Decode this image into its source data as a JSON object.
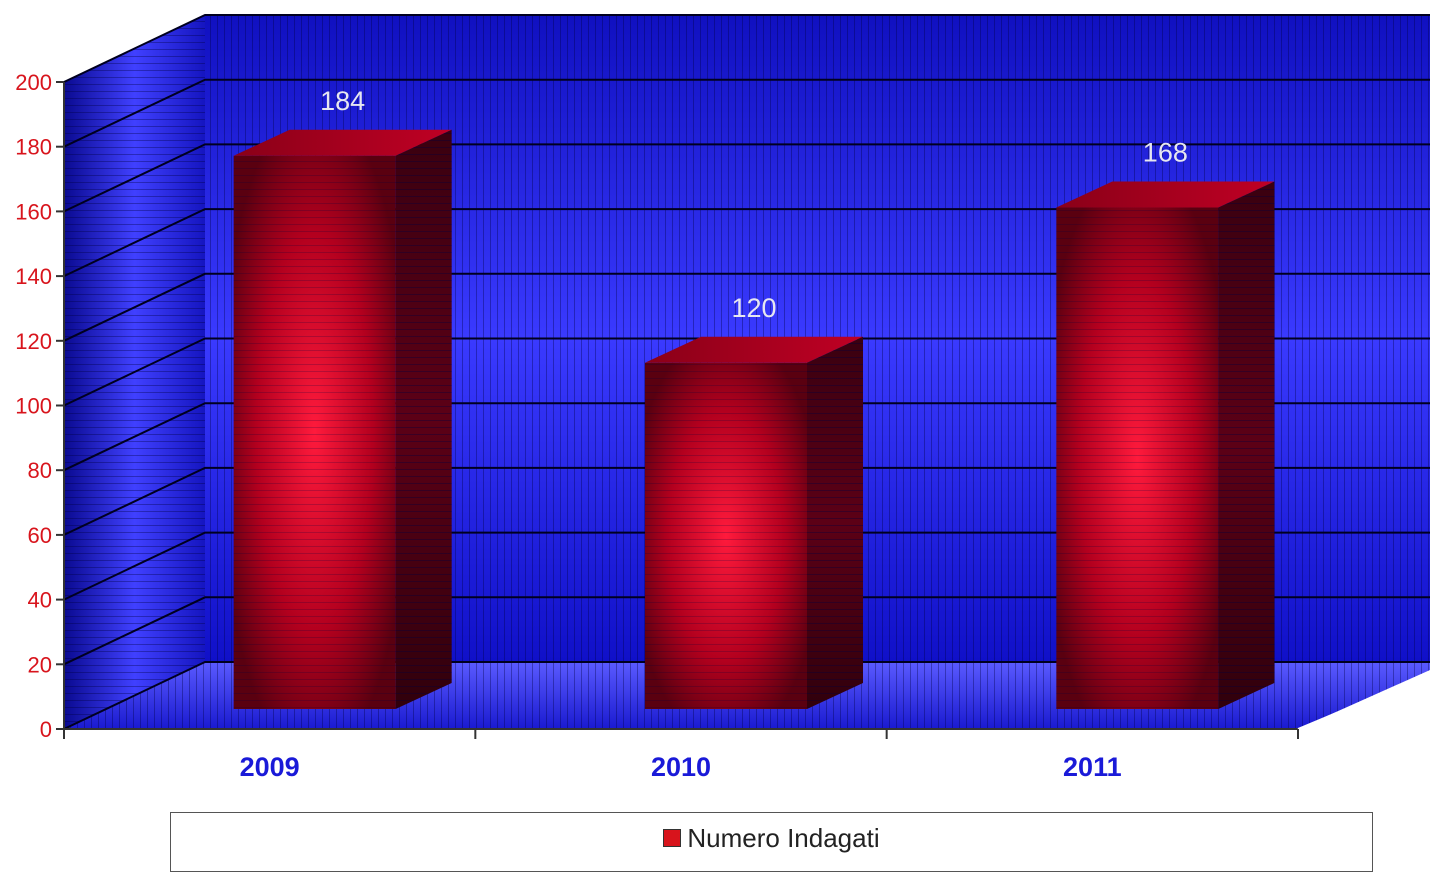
{
  "chart_data": {
    "type": "bar",
    "categories": [
      "2009",
      "2010",
      "2011"
    ],
    "series": [
      {
        "name": "Numero Indagati",
        "values": [
          184,
          120,
          168
        ]
      }
    ],
    "ylim": [
      0,
      200
    ],
    "yticks": [
      0,
      20,
      40,
      60,
      80,
      100,
      120,
      140,
      160,
      180,
      200
    ],
    "data_labels": [
      "184",
      "120",
      "168"
    ],
    "grid": true,
    "legend": "bottom",
    "style": "3d",
    "colors": {
      "bar": "#c8102e",
      "walls": "#1c1cf0",
      "axis_tick_labels": "#d8141c",
      "category_labels": "#1a1ad8"
    }
  }
}
